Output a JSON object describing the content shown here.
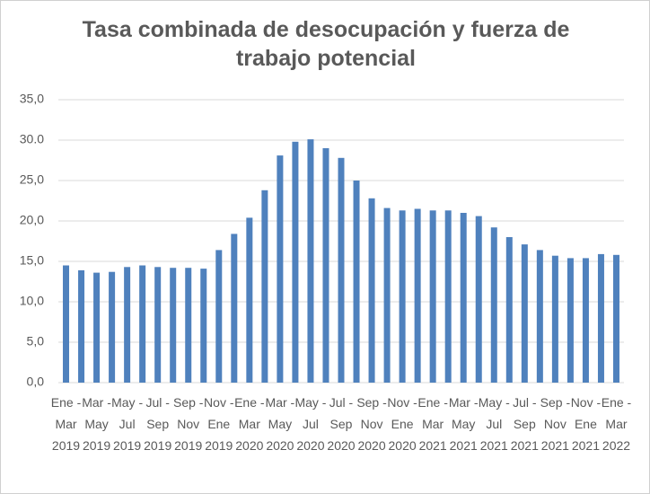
{
  "chart_data": {
    "type": "bar",
    "title": "Tasa combinada de desocupación y fuerza de trabajo potencial",
    "categories": [
      "Ene - Mar 2019",
      null,
      "Mar - May 2019",
      null,
      "May -Jul 2019",
      null,
      "Jul - Sep 2019",
      null,
      "Sep - Nov 2019",
      null,
      "Nov - Ene 2019",
      null,
      "Ene - Mar 2020",
      null,
      "Mar - May 2020",
      null,
      "May -Jul 2020",
      null,
      "Jul - Sep 2020",
      null,
      "Sep - Nov 2020",
      null,
      "Nov - Ene 2020",
      null,
      "Ene - Mar 2021",
      null,
      "Mar - May 2021",
      null,
      "May -Jul 2021",
      null,
      "Jul - Sep 2021",
      null,
      "Sep - Nov 2021",
      null,
      "Nov - Ene 2021",
      null,
      "Ene - Mar 2022"
    ],
    "values": [
      14.5,
      13.9,
      13.6,
      13.7,
      14.3,
      14.5,
      14.3,
      14.2,
      14.2,
      14.1,
      16.4,
      18.4,
      20.4,
      23.8,
      28.1,
      29.8,
      30.1,
      29.0,
      27.8,
      25.0,
      22.8,
      21.6,
      21.3,
      21.5,
      21.3,
      21.3,
      21.0,
      20.6,
      19.2,
      18.0,
      17.1,
      16.4,
      15.7,
      15.4,
      15.4,
      15.9,
      15.8
    ],
    "color": "#4f81bd",
    "ylim": [
      0,
      35
    ],
    "yticks": [
      {
        "value": 0,
        "label": "0,0"
      },
      {
        "value": 5,
        "label": "5,0"
      },
      {
        "value": 10,
        "label": "10,0"
      },
      {
        "value": 15,
        "label": "15,0"
      },
      {
        "value": 20,
        "label": "20,0"
      },
      {
        "value": 25,
        "label": "25,0"
      },
      {
        "value": 30,
        "label": "30.0"
      },
      {
        "value": 35,
        "label": "35,0"
      }
    ],
    "grid": true
  }
}
